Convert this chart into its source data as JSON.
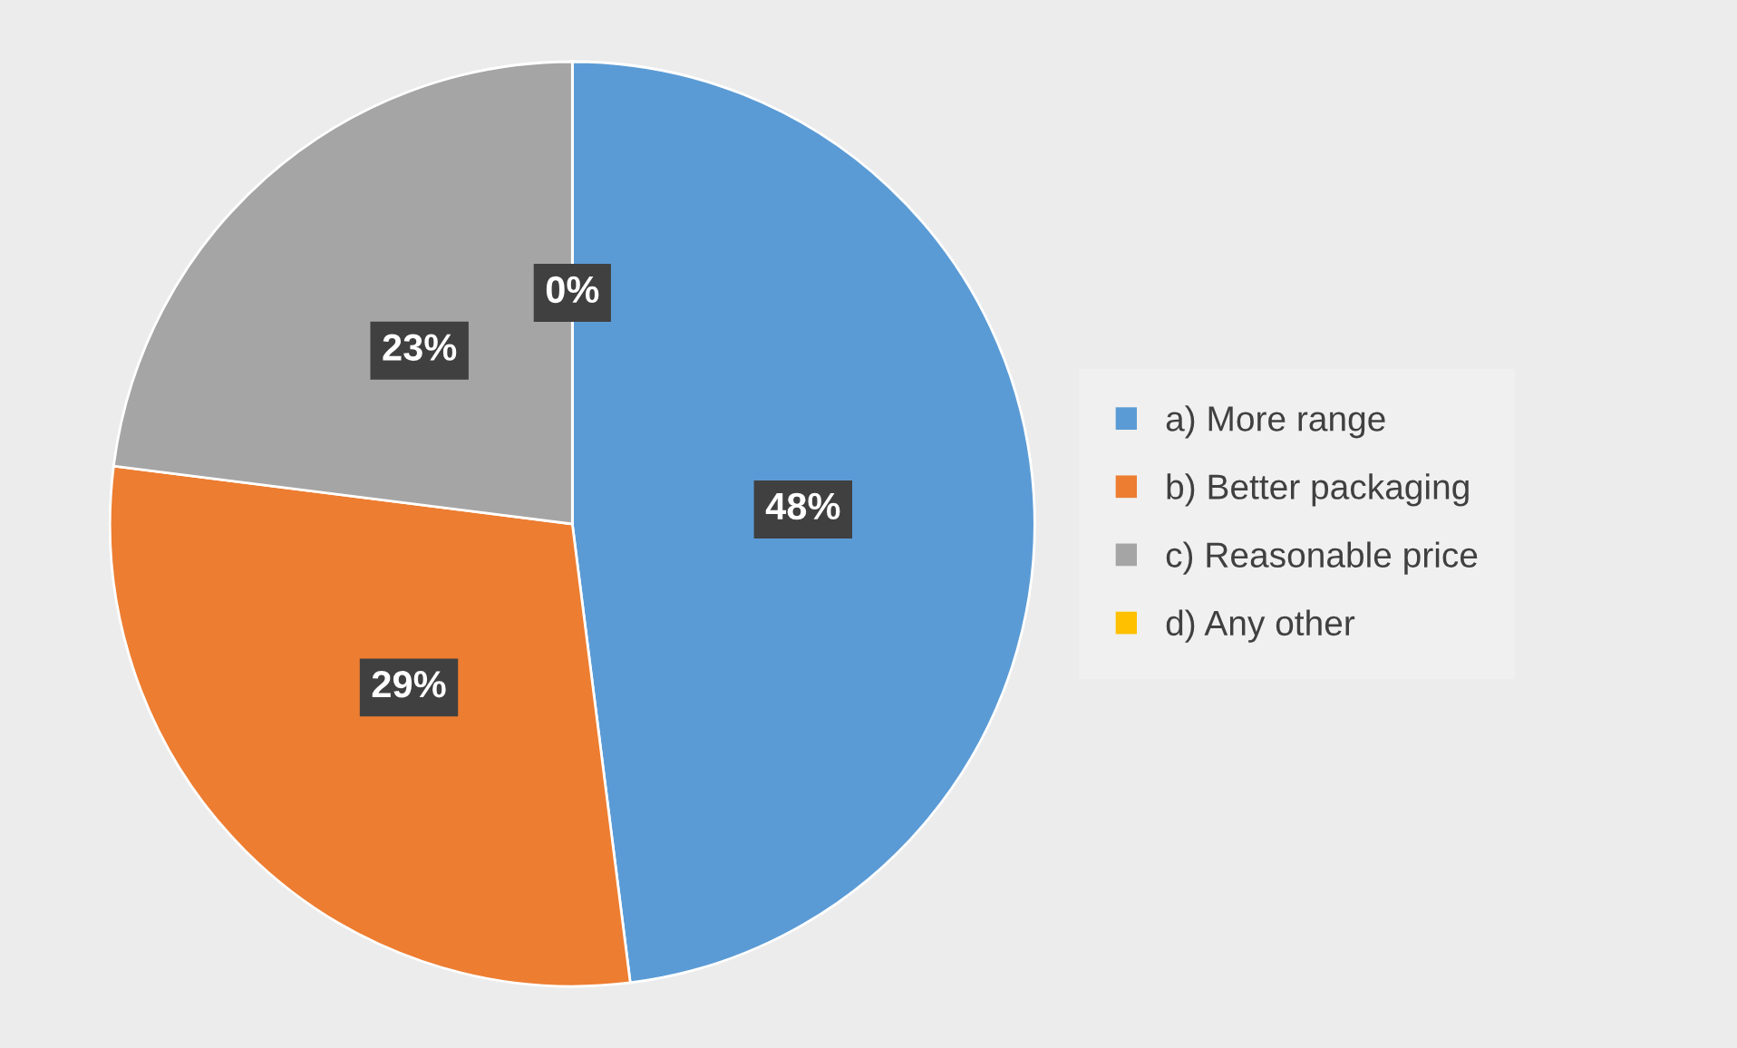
{
  "chart_data": {
    "type": "pie",
    "categories": [
      "a) More range",
      "b) Better packaging",
      "c) Reasonable price",
      "d) Any other"
    ],
    "values": [
      48,
      29,
      23,
      0
    ],
    "colors": [
      "#5b9bd5",
      "#ed7d31",
      "#a5a5a5",
      "#ffc000"
    ],
    "value_labels": [
      "48%",
      "29%",
      "23%",
      "0%"
    ],
    "legend": "right"
  }
}
